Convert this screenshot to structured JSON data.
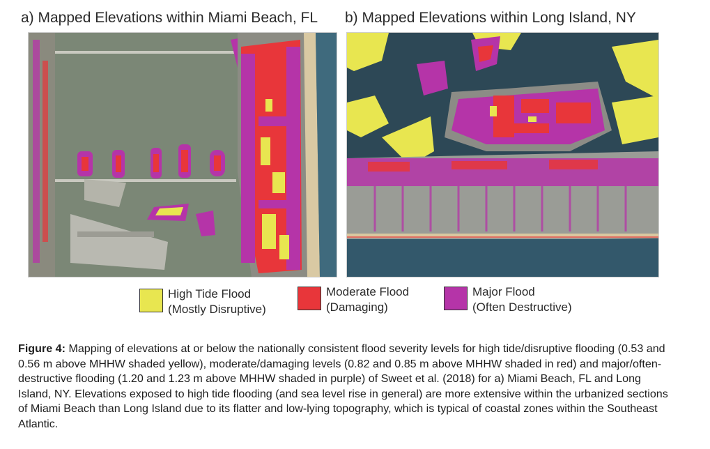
{
  "panels": {
    "a_title": "a) Mapped Elevations within Miami Beach, FL",
    "b_title": "b) Mapped Elevations within Long Island, NY"
  },
  "legend": {
    "items": [
      {
        "line1": "High Tide Flood",
        "line2": "(Mostly Disruptive)",
        "color": "#e8e650"
      },
      {
        "line1": "Moderate Flood",
        "line2": "(Damaging)",
        "color": "#e8363a"
      },
      {
        "line1": "Major Flood",
        "line2": "(Often Destructive)",
        "color": "#b534a8"
      }
    ]
  },
  "caption": {
    "label": "Figure 4:",
    "text": " Mapping of elevations at or below the nationally consistent flood severity levels for high tide/disruptive flooding (0.53 and 0.56 m above MHHW shaded yellow), moderate/damaging levels (0.82 and 0.85 m above MHHW shaded in red) and major/often-destructive flooding (1.20 and 1.23 m above MHHW shaded in purple) of Sweet et al. (2018) for a) Miami Beach, FL and Long Island, NY.  Elevations exposed to high tide flooding (and sea level rise in general) are more extensive within the urbanized sections of Miami Beach than Long Island due to its flatter and low-lying topography, which is typical of coastal zones within the Southeast Atlantic."
  },
  "colors": {
    "high_tide": "#e8e650",
    "moderate": "#e8363a",
    "major": "#b534a8",
    "water_a": "#7d8a78",
    "water_b": "#2f4a58"
  }
}
